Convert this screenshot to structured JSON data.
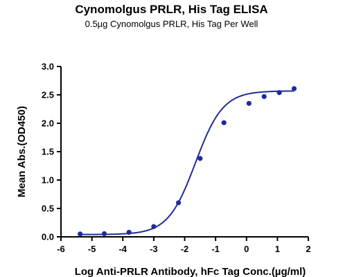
{
  "chart_data": {
    "type": "scatter",
    "title": "Cynomolgus PRLR, His Tag ELISA",
    "subtitle": "0.5µg Cynomolgus PRLR, His Tag Per Well",
    "xlabel": "Log Anti-PRLR Antibody, hFc Tag Conc.(µg/ml)",
    "ylabel": "Mean Abs.(OD450)",
    "xlim": [
      -6,
      2
    ],
    "ylim": [
      0,
      3.0
    ],
    "x_ticks": [
      "-6",
      "-5",
      "-4",
      "-3",
      "-2",
      "-1",
      "0",
      "1",
      "2"
    ],
    "y_ticks": [
      "0.0",
      "0.5",
      "1.0",
      "1.5",
      "2.0",
      "2.5",
      "3.0"
    ],
    "grid": false,
    "series": [
      {
        "color": "#1f2a9e",
        "points": [
          {
            "x": -5.38,
            "y": 0.05
          },
          {
            "x": -4.6,
            "y": 0.055
          },
          {
            "x": -3.8,
            "y": 0.08
          },
          {
            "x": -3.0,
            "y": 0.18
          },
          {
            "x": -2.2,
            "y": 0.6
          },
          {
            "x": -1.5,
            "y": 1.38
          },
          {
            "x": -0.73,
            "y": 2.01
          },
          {
            "x": 0.08,
            "y": 2.35
          },
          {
            "x": 0.57,
            "y": 2.47
          },
          {
            "x": 1.06,
            "y": 2.54
          },
          {
            "x": 1.54,
            "y": 2.61
          }
        ],
        "fit": {
          "model": "4PL",
          "bottom": 0.04,
          "top": 2.57,
          "logEC50": -1.65,
          "hill": 0.98
        }
      }
    ]
  }
}
